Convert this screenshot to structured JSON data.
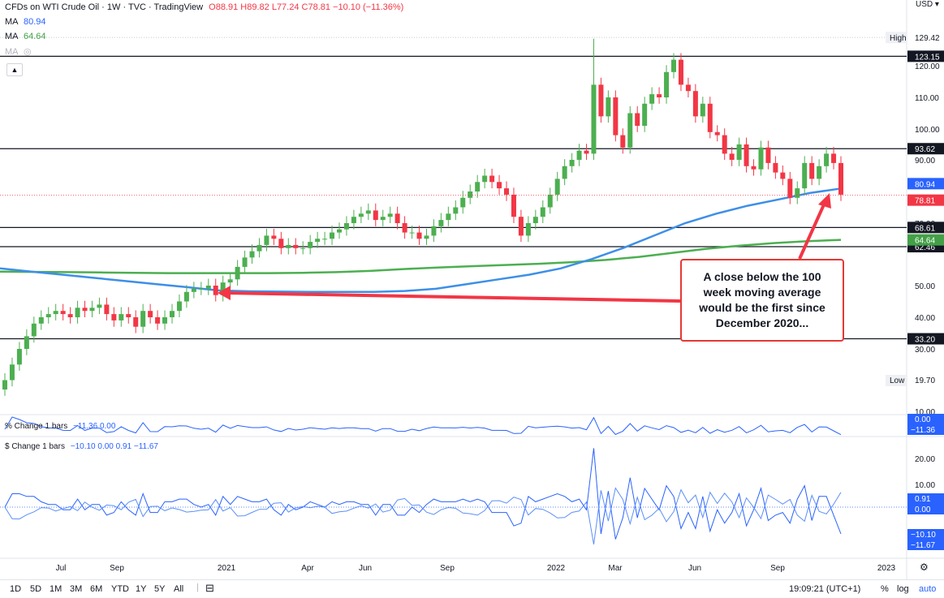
{
  "header": {
    "symbol": "CFDs on WTI Crude Oil · 1W · TVC · TradingView",
    "ohlc": "O88.91 H89.82 L77.24 C78.81 −10.10 (−11.36%)",
    "ma1_label": "MA",
    "ma1_value": "80.94",
    "ma2_label": "MA",
    "ma2_value": "64.64",
    "ma3_label": "MA"
  },
  "currency": "USD",
  "panes": {
    "pct_change": {
      "label": "% Change 1 bars",
      "values": "−11.36 0.00",
      "tags": [
        "0.00",
        "−11.36"
      ]
    },
    "dollar_change": {
      "label": "$ Change 1 bars",
      "values": "−10.10 0.00 0.91 −11.67",
      "tags": [
        "0.91",
        "0.00",
        "−10.10",
        "−11.67"
      ],
      "ticks": [
        "20.00",
        "10.00"
      ]
    }
  },
  "price_tags": {
    "high": {
      "label": "High",
      "value": "129.42"
    },
    "low": {
      "label": "Low",
      "value": "19.70"
    },
    "ma100": "80.94",
    "last": "78.81",
    "ma200": "64.64"
  },
  "annotation": "A close below the 100 week moving average would be the first since December 2020...",
  "bottom": {
    "ranges": [
      "1D",
      "5D",
      "1M",
      "3M",
      "6M",
      "YTD",
      "1Y",
      "5Y",
      "All"
    ],
    "time": "19:09:21 (UTC+1)",
    "pct": "%",
    "log": "log",
    "auto": "auto"
  },
  "colors": {
    "up": "#4caf50",
    "down": "#f23645",
    "ma100": "#2962ff",
    "ma100_line": "#3d8fe8",
    "ma200": "#43a047",
    "annotation": "#e53935"
  },
  "chart_data": {
    "type": "candlestick",
    "title": "CFDs on WTI Crude Oil · 1W · TVC · TradingView",
    "x_ticks": [
      "Jul",
      "Sep",
      "2021",
      "Apr",
      "Jun",
      "Sep",
      "2022",
      "Mar",
      "Jun",
      "Sep",
      "2023"
    ],
    "y_ticks": [
      120,
      110,
      100,
      90,
      70,
      50,
      40,
      30,
      10
    ],
    "ylim": [
      10,
      131
    ],
    "horizontal_levels": [
      123.15,
      93.62,
      68.61,
      62.46,
      33.2
    ],
    "series": [
      {
        "name": "MA",
        "type": "line",
        "values": [
          55.5,
          54.5,
          53.5,
          52.5,
          51.5,
          50.5,
          49.5,
          48.5,
          48.2,
          48.1,
          48.0,
          48.0,
          48.0,
          48.3,
          49.0,
          50.5,
          52.0,
          53.5,
          55.5,
          58.5,
          62.0,
          66.0,
          70.0,
          73.0,
          75.5,
          77.5,
          79.5,
          80.94
        ]
      },
      {
        "name": "MA",
        "type": "line",
        "values": [
          54.5,
          54.4,
          54.3,
          54.2,
          54.1,
          54.0,
          54.0,
          54.0,
          54.0,
          54.1,
          54.3,
          54.7,
          55.3,
          55.8,
          56.2,
          56.6,
          57.0,
          57.5,
          58.2,
          59.2,
          60.5,
          61.8,
          62.8,
          63.6,
          64.2,
          64.64
        ]
      }
    ],
    "candles_summary": "weekly candles from ~20 (Apr 2020) rising to 129.42 high (Mar 2022), last close 78.81"
  }
}
